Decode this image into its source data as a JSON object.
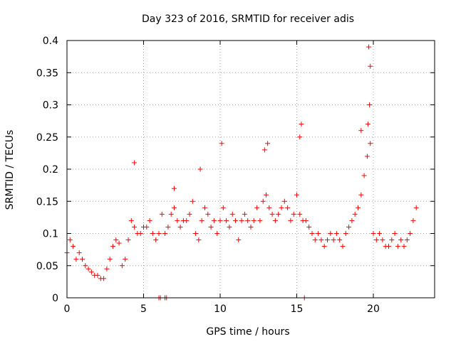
{
  "chart_data": {
    "type": "scatter",
    "title": "Day 323 of 2016, SRMTID for receiver adis",
    "xlabel": "GPS time / hours",
    "ylabel": "SRMTID / TECUs",
    "xlim": [
      0,
      24
    ],
    "ylim": [
      0,
      0.4
    ],
    "x_ticks": [
      0,
      5,
      10,
      15,
      20
    ],
    "x_tick_labels": [
      "0",
      "5",
      "10",
      "15",
      "20"
    ],
    "y_ticks": [
      0,
      0.05,
      0.1,
      0.15,
      0.2,
      0.25,
      0.3,
      0.35,
      0.4
    ],
    "y_tick_labels": [
      "0",
      "0.05",
      "0.1",
      "0.15",
      "0.2",
      "0.25",
      "0.3",
      "0.35",
      "0.4"
    ],
    "grid": true,
    "marker": "+",
    "color": "#ff0000",
    "series": [
      {
        "name": "adis",
        "x": [
          0.0,
          0.2,
          0.4,
          0.6,
          0.8,
          1.0,
          1.2,
          1.4,
          1.6,
          1.8,
          2.0,
          2.2,
          2.4,
          2.6,
          2.8,
          3.0,
          3.2,
          3.4,
          3.6,
          3.8,
          4.0,
          4.2,
          4.4,
          4.6,
          4.8,
          5.0,
          5.2,
          5.4,
          5.6,
          5.8,
          6.0,
          6.2,
          6.4,
          6.6,
          6.8,
          7.0,
          7.2,
          7.4,
          7.6,
          7.8,
          8.0,
          8.2,
          8.4,
          8.6,
          8.8,
          9.0,
          9.2,
          9.4,
          9.6,
          9.8,
          10.0,
          10.2,
          10.4,
          10.6,
          10.8,
          11.0,
          11.2,
          11.4,
          11.6,
          11.8,
          12.0,
          12.2,
          12.4,
          12.6,
          12.8,
          13.0,
          13.2,
          13.4,
          13.6,
          13.8,
          14.0,
          14.2,
          14.4,
          14.6,
          14.8,
          15.0,
          15.2,
          15.4,
          15.6,
          15.8,
          16.0,
          16.2,
          16.4,
          16.6,
          16.8,
          17.0,
          17.2,
          17.4,
          17.6,
          17.8,
          18.0,
          18.2,
          18.4,
          18.6,
          18.8,
          19.0,
          19.2,
          19.4,
          19.6,
          19.8,
          20.0,
          20.2,
          20.4,
          20.6,
          20.8,
          21.0,
          21.2,
          21.4,
          21.6,
          21.8,
          22.0,
          22.2,
          22.4,
          22.6,
          22.8,
          6.0,
          6.1,
          6.4,
          6.5,
          15.5,
          15.2,
          15.3,
          19.7,
          19.8,
          19.75,
          19.65,
          19.2,
          12.9,
          13.1,
          10.1,
          4.4,
          7.0,
          8.7
        ],
        "y": [
          0.07,
          0.09,
          0.08,
          0.06,
          0.07,
          0.06,
          0.05,
          0.045,
          0.04,
          0.035,
          0.035,
          0.03,
          0.03,
          0.045,
          0.06,
          0.08,
          0.09,
          0.085,
          0.05,
          0.06,
          0.09,
          0.12,
          0.11,
          0.1,
          0.1,
          0.11,
          0.11,
          0.12,
          0.1,
          0.09,
          0.1,
          0.13,
          0.1,
          0.11,
          0.13,
          0.14,
          0.12,
          0.11,
          0.12,
          0.12,
          0.13,
          0.15,
          0.1,
          0.09,
          0.12,
          0.14,
          0.13,
          0.11,
          0.12,
          0.1,
          0.12,
          0.14,
          0.12,
          0.11,
          0.13,
          0.12,
          0.09,
          0.12,
          0.13,
          0.12,
          0.11,
          0.12,
          0.14,
          0.12,
          0.15,
          0.16,
          0.14,
          0.13,
          0.12,
          0.13,
          0.14,
          0.15,
          0.14,
          0.12,
          0.13,
          0.16,
          0.13,
          0.12,
          0.12,
          0.11,
          0.1,
          0.09,
          0.1,
          0.09,
          0.08,
          0.09,
          0.1,
          0.09,
          0.1,
          0.09,
          0.08,
          0.1,
          0.11,
          0.12,
          0.13,
          0.14,
          0.16,
          0.19,
          0.22,
          0.24,
          0.1,
          0.09,
          0.1,
          0.09,
          0.08,
          0.08,
          0.09,
          0.1,
          0.08,
          0.09,
          0.08,
          0.09,
          0.1,
          0.12,
          0.14,
          0.0,
          0.0,
          0.0,
          0.0,
          0.0,
          0.25,
          0.27,
          0.39,
          0.36,
          0.3,
          0.27,
          0.26,
          0.23,
          0.24,
          0.24,
          0.21,
          0.17,
          0.2
        ]
      }
    ]
  }
}
